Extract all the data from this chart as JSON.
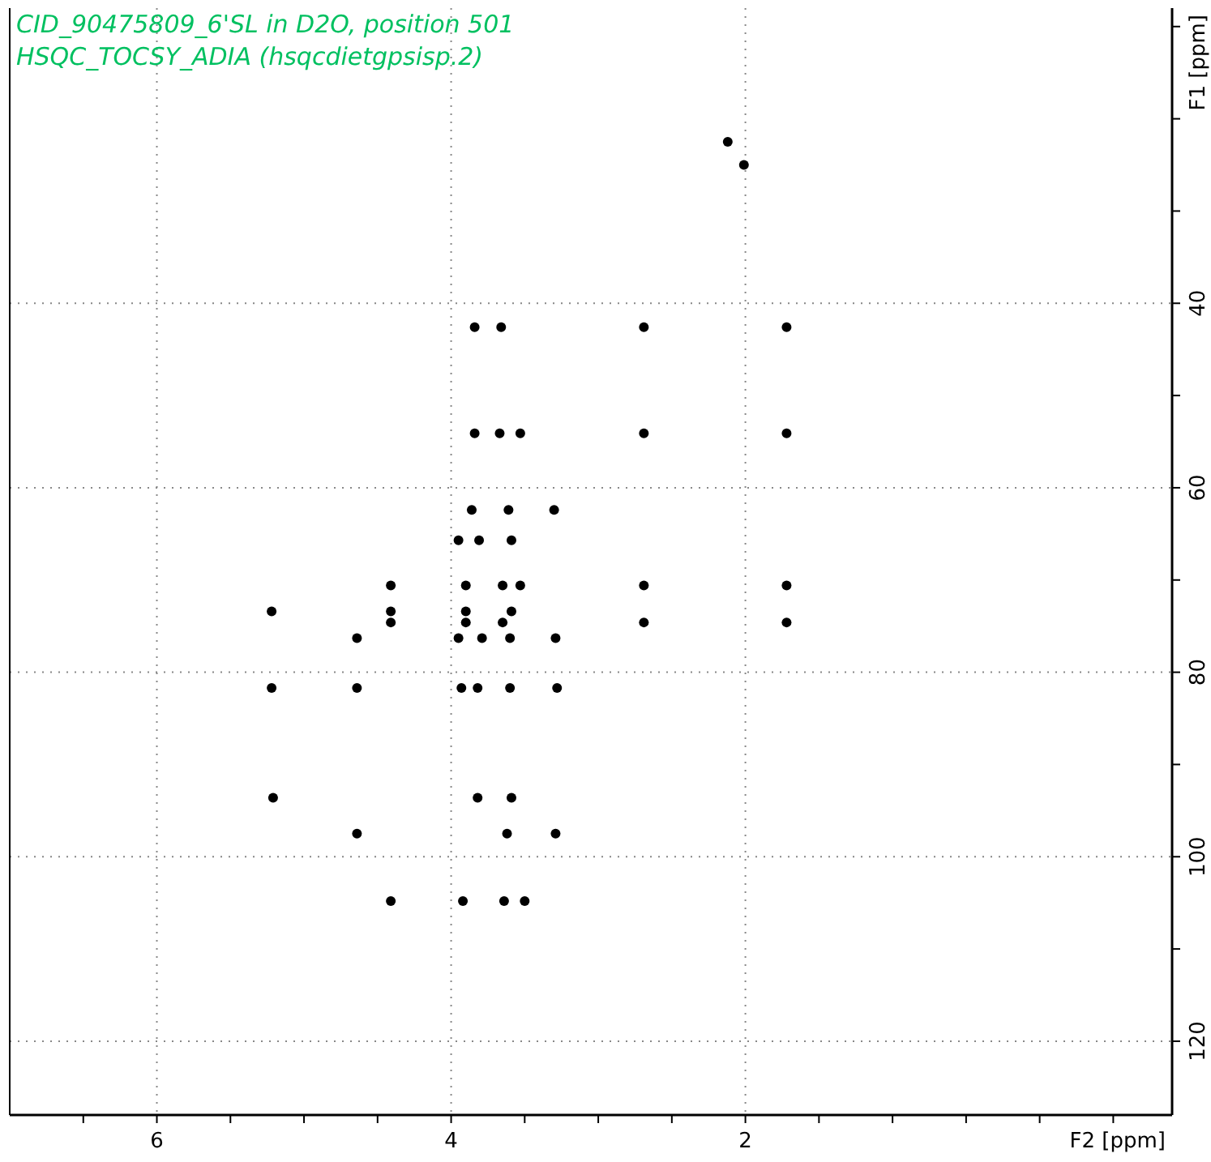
{
  "chart_data": {
    "type": "scatter",
    "title": "CID_90475809_6'SL in D2O, position 501",
    "subtitle": "HSQC_TOCSY_ADIA (hsqcdietgpsisp.2)",
    "xlabel": "F2 [ppm]",
    "ylabel": "F1 [ppm]",
    "xlim": [
      7,
      -0.9
    ],
    "ylim": [
      128,
      8
    ],
    "xticks": [
      {
        "value": 6.5,
        "label": null
      },
      6,
      {
        "value": 5.5,
        "label": null
      },
      {
        "value": 5,
        "label": null
      },
      {
        "value": 4.5,
        "label": null
      },
      4,
      {
        "value": 3.5,
        "label": null
      },
      {
        "value": 3,
        "label": null
      },
      {
        "value": 2.5,
        "label": null
      },
      2,
      {
        "value": 1.5,
        "label": null
      },
      {
        "value": 1,
        "label": null
      },
      {
        "value": 0.5,
        "label": null
      },
      {
        "value": 0,
        "label": null
      },
      {
        "value": -0.5,
        "label": null
      }
    ],
    "yticks": [
      {
        "value": 10,
        "label": null
      },
      {
        "value": 20,
        "label": null
      },
      {
        "value": 30,
        "label": null
      },
      40,
      {
        "value": 50,
        "label": null
      },
      60,
      {
        "value": 70,
        "label": null
      },
      80,
      {
        "value": 90,
        "label": null
      },
      100,
      {
        "value": 110,
        "label": null
      },
      120
    ],
    "grid": true,
    "marker": "circle",
    "series": [
      {
        "color": "#000000",
        "x": [
          2.01,
          2.12,
          3.84,
          3.66,
          2.69,
          1.72,
          3.84,
          3.67,
          3.53,
          2.69,
          1.72,
          3.86,
          3.61,
          3.3,
          3.95,
          3.81,
          3.59,
          4.41,
          3.9,
          3.65,
          3.53,
          2.69,
          1.72,
          5.22,
          4.41,
          3.9,
          3.59,
          4.41,
          3.9,
          3.65,
          2.69,
          1.72,
          4.64,
          3.95,
          3.79,
          3.6,
          3.29,
          5.22,
          4.64,
          3.93,
          3.82,
          3.6,
          3.28,
          5.21,
          3.82,
          3.59,
          4.64,
          3.62,
          3.29,
          4.41,
          3.92,
          3.64,
          3.5
        ],
        "values": [
          25.0,
          22.5,
          42.6,
          42.6,
          42.6,
          42.6,
          54.1,
          54.1,
          54.1,
          54.1,
          54.1,
          62.4,
          62.4,
          62.4,
          65.7,
          65.7,
          65.7,
          70.6,
          70.6,
          70.6,
          70.6,
          70.6,
          70.6,
          73.4,
          73.4,
          73.4,
          73.4,
          74.6,
          74.6,
          74.6,
          74.6,
          74.6,
          76.3,
          76.3,
          76.3,
          76.3,
          76.3,
          81.7,
          81.7,
          81.7,
          81.7,
          81.7,
          81.7,
          93.6,
          93.6,
          93.6,
          97.5,
          97.5,
          97.5,
          104.8,
          104.8,
          104.8,
          104.8
        ]
      }
    ]
  }
}
